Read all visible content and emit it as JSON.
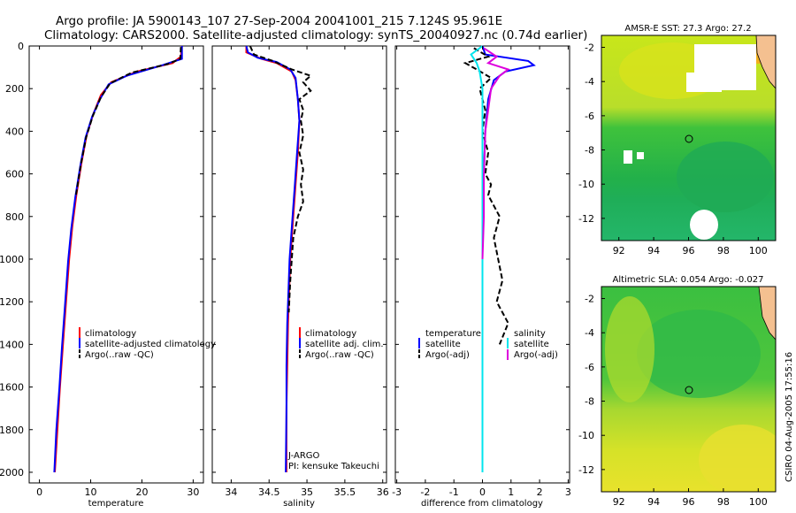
{
  "header": {
    "line1": "Argo profile: JA 5900143_107 27-Sep-2004 20041001_215 7.124S 95.961E",
    "line2": "Climatology: CARS2000. Satellite-adjusted climatology: synTS_20040927.nc (0.74d earlier)"
  },
  "side_stamp": "CSIRO 04-Aug-2005 17:55:16",
  "colors": {
    "clim": "#ff0000",
    "sat": "#0000ff",
    "argo": "#000000",
    "sal_sat": "#00e5ee",
    "sal_argo": "#dd00dd"
  },
  "chart_data": [
    {
      "type": "line",
      "id": "temperature",
      "xlabel": "temperature",
      "xlim": [
        -2,
        32
      ],
      "ylim": [
        2050,
        0
      ],
      "xticks": [
        0,
        10,
        20,
        30
      ],
      "yticks": [
        0,
        200,
        400,
        600,
        800,
        1000,
        1200,
        1400,
        1600,
        1800,
        2000
      ],
      "legend": [
        "climatology",
        "satellite-adjusted climatology",
        "Argo(..raw -QC)"
      ],
      "series": [
        {
          "name": "climatology",
          "color": "#ff0000",
          "points": [
            [
              27.8,
              0
            ],
            [
              27.6,
              50
            ],
            [
              26,
              80
            ],
            [
              19,
              120
            ],
            [
              14,
              170
            ],
            [
              12,
              230
            ],
            [
              10.5,
              320
            ],
            [
              9.2,
              420
            ],
            [
              8.2,
              550
            ],
            [
              7.2,
              700
            ],
            [
              6.4,
              850
            ],
            [
              5.8,
              1000
            ],
            [
              5.2,
              1200
            ],
            [
              4.6,
              1400
            ],
            [
              4,
              1600
            ],
            [
              3.5,
              1800
            ],
            [
              3,
              2000
            ]
          ]
        },
        {
          "name": "satellite",
          "color": "#0000ff",
          "points": [
            [
              27.8,
              0
            ],
            [
              27.8,
              60
            ],
            [
              24,
              90
            ],
            [
              17,
              140
            ],
            [
              13.5,
              180
            ],
            [
              11.8,
              250
            ],
            [
              10.3,
              330
            ],
            [
              9,
              430
            ],
            [
              8,
              560
            ],
            [
              7,
              710
            ],
            [
              6.2,
              860
            ],
            [
              5.6,
              1010
            ],
            [
              5,
              1210
            ],
            [
              4.4,
              1410
            ],
            [
              3.9,
              1600
            ],
            [
              3.3,
              1800
            ],
            [
              2.9,
              2000
            ]
          ]
        },
        {
          "name": "Argo(..raw -QC)",
          "color": "#000000",
          "dashed": true,
          "points": [
            [
              27.6,
              5
            ],
            [
              27.5,
              60
            ],
            [
              25,
              85
            ],
            [
              18,
              125
            ],
            [
              13.8,
              175
            ],
            [
              12,
              240
            ],
            [
              10.4,
              330
            ],
            [
              9.1,
              430
            ],
            [
              8.1,
              555
            ],
            [
              7.1,
              705
            ]
          ]
        }
      ]
    },
    {
      "type": "line",
      "id": "salinity",
      "xlabel": "salinity",
      "xlim": [
        33.75,
        36.05
      ],
      "ylim": [
        2050,
        0
      ],
      "xticks": [
        34,
        34.5,
        35,
        35.5,
        36
      ],
      "legend": [
        "climatology",
        "satellite adj. clim.",
        "Argo(..raw -QC)"
      ],
      "annotations": [
        "J-ARGO",
        "PI: kensuke Takeuchi"
      ],
      "series": [
        {
          "name": "climatology",
          "color": "#ff0000",
          "points": [
            [
              34.2,
              0
            ],
            [
              34.2,
              30
            ],
            [
              34.4,
              60
            ],
            [
              34.6,
              80
            ],
            [
              34.8,
              120
            ],
            [
              34.85,
              160
            ],
            [
              34.88,
              250
            ],
            [
              34.9,
              350
            ],
            [
              34.88,
              500
            ],
            [
              34.85,
              650
            ],
            [
              34.82,
              800
            ],
            [
              34.78,
              1000
            ],
            [
              34.76,
              1200
            ],
            [
              34.75,
              1300
            ],
            [
              34.74,
              1500
            ],
            [
              34.73,
              1700
            ],
            [
              34.73,
              2000
            ]
          ]
        },
        {
          "name": "satellite",
          "color": "#0000ff",
          "points": [
            [
              34.2,
              0
            ],
            [
              34.22,
              30
            ],
            [
              34.35,
              55
            ],
            [
              34.6,
              75
            ],
            [
              34.78,
              110
            ],
            [
              34.85,
              150
            ],
            [
              34.88,
              250
            ],
            [
              34.9,
              350
            ],
            [
              34.87,
              500
            ],
            [
              34.84,
              650
            ],
            [
              34.81,
              800
            ],
            [
              34.77,
              1000
            ],
            [
              34.75,
              1200
            ],
            [
              34.74,
              1300
            ],
            [
              34.73,
              1500
            ],
            [
              34.73,
              1700
            ],
            [
              34.72,
              2000
            ]
          ]
        },
        {
          "name": "Argo(..raw -QC)",
          "color": "#000000",
          "dashed": true,
          "points": [
            [
              34.25,
              0
            ],
            [
              34.3,
              40
            ],
            [
              34.55,
              70
            ],
            [
              34.8,
              110
            ],
            [
              35.05,
              140
            ],
            [
              34.95,
              170
            ],
            [
              35.05,
              210
            ],
            [
              34.9,
              250
            ],
            [
              34.95,
              300
            ],
            [
              34.92,
              350
            ],
            [
              34.95,
              420
            ],
            [
              34.9,
              500
            ],
            [
              34.95,
              580
            ],
            [
              34.92,
              650
            ],
            [
              34.95,
              730
            ],
            [
              34.88,
              800
            ],
            [
              34.82,
              900
            ],
            [
              34.8,
              1000
            ],
            [
              34.78,
              1100
            ],
            [
              34.76,
              1250
            ]
          ]
        }
      ]
    },
    {
      "type": "line",
      "id": "difference",
      "xlabel": "difference from climatology",
      "xlim": [
        -3.05,
        3.05
      ],
      "ylim": [
        2050,
        0
      ],
      "xticks": [
        -3,
        -2,
        -1,
        0,
        1,
        2,
        3
      ],
      "legend_left_title": "temperature",
      "legend_right_title": "salinity",
      "legend": [
        "satellite",
        "Argo(-adj)",
        "satellite",
        "Argo(-adj)"
      ],
      "series": [
        {
          "name": "temperature satellite",
          "color": "#0000ff",
          "points": [
            [
              0,
              0
            ],
            [
              0.1,
              40
            ],
            [
              1.6,
              70
            ],
            [
              1.8,
              90
            ],
            [
              0.8,
              120
            ],
            [
              0.4,
              160
            ],
            [
              0.2,
              250
            ],
            [
              0.1,
              400
            ],
            [
              0.05,
              600
            ],
            [
              0,
              800
            ],
            [
              0,
              2000
            ]
          ]
        },
        {
          "name": "temperature Argo(-adj)",
          "color": "#000000",
          "dashed": true,
          "points": [
            [
              -0.3,
              10
            ],
            [
              0.2,
              50
            ],
            [
              -0.6,
              80
            ],
            [
              -0.2,
              110
            ],
            [
              0.3,
              150
            ],
            [
              -0.1,
              200
            ],
            [
              0.1,
              300
            ],
            [
              0,
              400
            ],
            [
              0.2,
              500
            ],
            [
              0.1,
              600
            ],
            [
              0.3,
              650
            ],
            [
              0.2,
              700
            ],
            [
              0.6,
              800
            ],
            [
              0.4,
              900
            ],
            [
              0.7,
              1100
            ],
            [
              0.5,
              1200
            ],
            [
              0.9,
              1300
            ],
            [
              0.6,
              1400
            ]
          ]
        },
        {
          "name": "salinity satellite",
          "color": "#00e5ee",
          "points": [
            [
              0,
              0
            ],
            [
              -0.4,
              40
            ],
            [
              -0.2,
              80
            ],
            [
              -0.1,
              120
            ],
            [
              0,
              200
            ],
            [
              0,
              300
            ],
            [
              0,
              500
            ],
            [
              0,
              800
            ],
            [
              0,
              1000
            ],
            [
              0,
              2000
            ]
          ]
        },
        {
          "name": "salinity Argo(-adj)",
          "color": "#dd00dd",
          "points": [
            [
              0.05,
              10
            ],
            [
              0.5,
              50
            ],
            [
              0.2,
              80
            ],
            [
              0.9,
              110
            ],
            [
              0.6,
              140
            ],
            [
              0.3,
              200
            ],
            [
              0.2,
              300
            ],
            [
              0.1,
              400
            ],
            [
              0.05,
              600
            ],
            [
              0.05,
              800
            ],
            [
              0,
              1000
            ]
          ]
        }
      ]
    },
    {
      "type": "heatmap",
      "id": "sst-map",
      "title": "AMSR-E SST: 27.3 Argo: 27.2",
      "xlim": [
        91,
        101
      ],
      "ylim": [
        -13.3,
        -1.3
      ],
      "xticks": [
        92,
        94,
        96,
        98,
        100
      ],
      "yticks": [
        -2,
        -4,
        -6,
        -8,
        -10,
        -12
      ],
      "marker": {
        "lon": 95.961,
        "lat": -7.124
      }
    },
    {
      "type": "heatmap",
      "id": "sla-map",
      "title": "Altimetric SLA: 0.054 Argo: -0.027",
      "xlim": [
        91,
        101
      ],
      "ylim": [
        -13.3,
        -1.3
      ],
      "xticks": [
        92,
        94,
        96,
        98,
        100
      ],
      "yticks": [
        -2,
        -4,
        -6,
        -8,
        -10,
        -12
      ],
      "marker": {
        "lon": 95.961,
        "lat": -7.124
      }
    }
  ]
}
